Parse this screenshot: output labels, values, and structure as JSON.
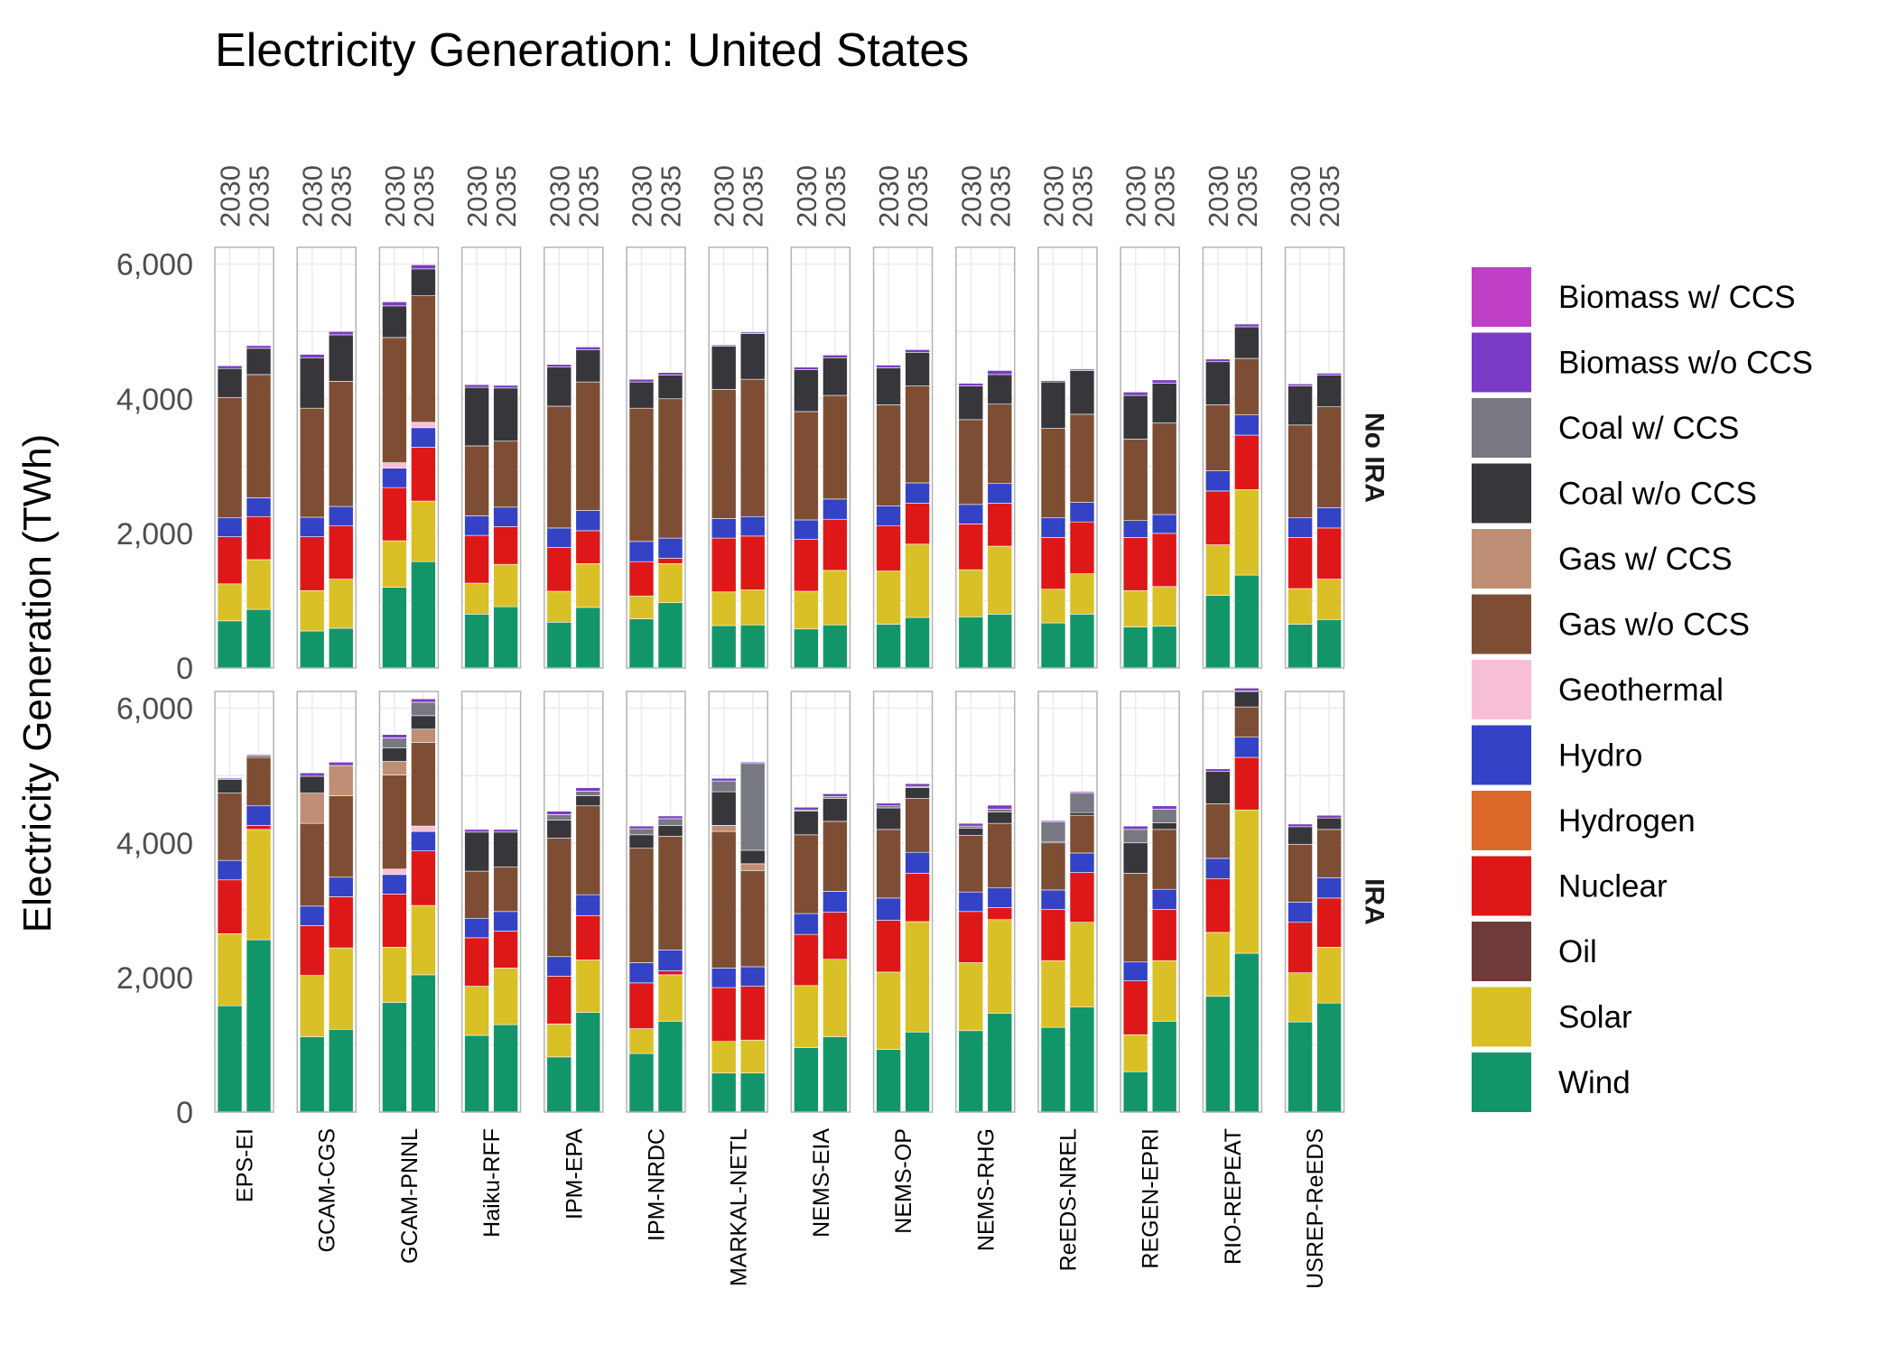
{
  "chart_data": {
    "type": "bar",
    "stacked": true,
    "faceted": true,
    "title": "Electricity Generation: United States",
    "ylabel": "Electricity Generation (TWh)",
    "xlabel": "",
    "ylim": [
      0,
      6250
    ],
    "yticks": [
      0,
      2000,
      4000,
      6000
    ],
    "ytick_labels": [
      "0",
      "2,000",
      "4,000",
      "6,000"
    ],
    "years": [
      "2030",
      "2035"
    ],
    "grid": true,
    "legend_position": "right",
    "scenarios": [
      "No IRA",
      "IRA"
    ],
    "models": [
      "EPS-EI",
      "GCAM-CGS",
      "GCAM-PNNL",
      "Haiku-RFF",
      "IPM-EPA",
      "IPM-NRDC",
      "MARKAL-NETL",
      "NEMS-EIA",
      "NEMS-OP",
      "NEMS-RHG",
      "ReEDS-NREL",
      "REGEN-EPRI",
      "RIO-REPEAT",
      "USREP-ReEDS"
    ],
    "series": [
      {
        "name": "Biomass w/ CCS",
        "color": "#BF3FC6"
      },
      {
        "name": "Biomass w/o CCS",
        "color": "#7B3BC5"
      },
      {
        "name": "Coal w/ CCS",
        "color": "#787883"
      },
      {
        "name": "Coal w/o CCS",
        "color": "#36363B"
      },
      {
        "name": "Gas w/ CCS",
        "color": "#BE8F74"
      },
      {
        "name": "Gas w/o CCS",
        "color": "#7E4E34"
      },
      {
        "name": "Geothermal",
        "color": "#F7BFD6"
      },
      {
        "name": "Hydro",
        "color": "#3442C6"
      },
      {
        "name": "Hydrogen",
        "color": "#DC6829"
      },
      {
        "name": "Nuclear",
        "color": "#DE1818"
      },
      {
        "name": "Oil",
        "color": "#6E3A3A"
      },
      {
        "name": "Solar",
        "color": "#D9C026"
      },
      {
        "name": "Wind",
        "color": "#13956A"
      }
    ],
    "stack_order": [
      "Wind",
      "Solar",
      "Oil",
      "Nuclear",
      "Hydrogen",
      "Hydro",
      "Geothermal",
      "Gas w/o CCS",
      "Gas w/ CCS",
      "Coal w/o CCS",
      "Coal w/ CCS",
      "Biomass w/o CCS",
      "Biomass w/ CCS"
    ],
    "values": {
      "No IRA": {
        "EPS-EI": {
          "2030": {
            "Wind": 700,
            "Solar": 550,
            "Nuclear": 700,
            "Hydro": 280,
            "Gas w/o CCS": 1790,
            "Coal w/o CCS": 430,
            "Biomass w/o CCS": 40
          },
          "2035": {
            "Wind": 870,
            "Solar": 740,
            "Nuclear": 640,
            "Hydro": 280,
            "Gas w/o CCS": 1830,
            "Coal w/o CCS": 390,
            "Biomass w/o CCS": 40
          }
        },
        "GCAM-CGS": {
          "2030": {
            "Wind": 550,
            "Solar": 600,
            "Nuclear": 800,
            "Hydro": 290,
            "Gas w/o CCS": 1620,
            "Coal w/o CCS": 750,
            "Biomass w/o CCS": 50
          },
          "2035": {
            "Wind": 590,
            "Solar": 730,
            "Nuclear": 790,
            "Hydro": 290,
            "Gas w/o CCS": 1860,
            "Coal w/o CCS": 690,
            "Biomass w/o CCS": 50
          }
        },
        "GCAM-PNNL": {
          "2030": {
            "Wind": 1200,
            "Solar": 690,
            "Nuclear": 790,
            "Hydro": 290,
            "Geothermal": 80,
            "Gas w/o CCS": 1860,
            "Coal w/o CCS": 470,
            "Biomass w/o CCS": 60
          },
          "2035": {
            "Wind": 1580,
            "Solar": 900,
            "Nuclear": 800,
            "Hydro": 290,
            "Geothermal": 80,
            "Gas w/o CCS": 1880,
            "Coal w/o CCS": 400,
            "Biomass w/o CCS": 60
          }
        },
        "Haiku-RFF": {
          "2030": {
            "Wind": 800,
            "Solar": 460,
            "Nuclear": 710,
            "Hydro": 290,
            "Gas w/o CCS": 1040,
            "Coal w/o CCS": 870,
            "Biomass w/o CCS": 40
          },
          "2035": {
            "Wind": 910,
            "Solar": 630,
            "Nuclear": 560,
            "Hydro": 290,
            "Gas w/o CCS": 980,
            "Coal w/o CCS": 790,
            "Biomass w/o CCS": 40
          }
        },
        "IPM-EPA": {
          "2030": {
            "Wind": 680,
            "Solar": 460,
            "Nuclear": 650,
            "Hydro": 290,
            "Gas w/o CCS": 1810,
            "Coal w/o CCS": 580,
            "Biomass w/o CCS": 40
          },
          "2035": {
            "Wind": 900,
            "Solar": 650,
            "Nuclear": 490,
            "Hydro": 300,
            "Gas w/o CCS": 1910,
            "Coal w/o CCS": 480,
            "Biomass w/o CCS": 40
          }
        },
        "IPM-NRDC": {
          "2030": {
            "Wind": 730,
            "Solar": 340,
            "Nuclear": 510,
            "Hydro": 300,
            "Gas w/o CCS": 1980,
            "Coal w/o CCS": 390,
            "Biomass w/o CCS": 40
          },
          "2035": {
            "Wind": 970,
            "Solar": 580,
            "Nuclear": 80,
            "Hydro": 300,
            "Gas w/o CCS": 2070,
            "Coal w/o CCS": 350,
            "Biomass w/o CCS": 40
          }
        },
        "MARKAL-NETL": {
          "2030": {
            "Wind": 630,
            "Solar": 500,
            "Nuclear": 800,
            "Hydro": 290,
            "Gas w/o CCS": 1920,
            "Coal w/o CCS": 640,
            "Biomass w/o CCS": 20
          },
          "2035": {
            "Wind": 640,
            "Solar": 520,
            "Nuclear": 800,
            "Hydro": 290,
            "Gas w/o CCS": 2040,
            "Coal w/o CCS": 680,
            "Biomass w/o CCS": 20
          }
        },
        "NEMS-EIA": {
          "2030": {
            "Wind": 580,
            "Solar": 560,
            "Nuclear": 770,
            "Hydro": 290,
            "Gas w/o CCS": 1610,
            "Coal w/o CCS": 620,
            "Biomass w/o CCS": 40
          },
          "2035": {
            "Wind": 640,
            "Solar": 810,
            "Nuclear": 760,
            "Hydro": 300,
            "Gas w/o CCS": 1540,
            "Coal w/o CCS": 560,
            "Biomass w/o CCS": 40
          }
        },
        "NEMS-OP": {
          "2030": {
            "Wind": 650,
            "Solar": 790,
            "Nuclear": 670,
            "Hydro": 300,
            "Gas w/o CCS": 1500,
            "Coal w/o CCS": 550,
            "Biomass w/o CCS": 40
          },
          "2035": {
            "Wind": 750,
            "Solar": 1090,
            "Nuclear": 610,
            "Hydro": 300,
            "Gas w/o CCS": 1440,
            "Coal w/o CCS": 500,
            "Biomass w/o CCS": 40
          }
        },
        "NEMS-RHG": {
          "2030": {
            "Wind": 760,
            "Solar": 700,
            "Nuclear": 680,
            "Hydro": 290,
            "Gas w/o CCS": 1260,
            "Coal w/o CCS": 500,
            "Biomass w/o CCS": 40
          },
          "2035": {
            "Wind": 800,
            "Solar": 1010,
            "Nuclear": 640,
            "Hydro": 290,
            "Gas w/o CCS": 1180,
            "Coal w/o CCS": 440,
            "Biomass w/o CCS": 60
          }
        },
        "ReEDS-NREL": {
          "2030": {
            "Wind": 670,
            "Solar": 500,
            "Nuclear": 770,
            "Hydro": 290,
            "Gas w/o CCS": 1330,
            "Coal w/o CCS": 690,
            "Biomass w/o CCS": 20
          },
          "2035": {
            "Wind": 800,
            "Solar": 600,
            "Nuclear": 770,
            "Hydro": 290,
            "Gas w/o CCS": 1310,
            "Coal w/o CCS": 650,
            "Biomass w/o CCS": 20
          }
        },
        "REGEN-EPRI": {
          "2030": {
            "Wind": 610,
            "Solar": 540,
            "Nuclear": 790,
            "Hydro": 250,
            "Gas w/o CCS": 1210,
            "Coal w/o CCS": 650,
            "Biomass w/o CCS": 50
          },
          "2035": {
            "Wind": 620,
            "Solar": 590,
            "Nuclear": 790,
            "Hydro": 280,
            "Gas w/o CCS": 1360,
            "Coal w/o CCS": 590,
            "Biomass w/o CCS": 50
          }
        },
        "RIO-REPEAT": {
          "2030": {
            "Wind": 1080,
            "Solar": 750,
            "Nuclear": 800,
            "Hydro": 300,
            "Gas w/o CCS": 980,
            "Coal w/o CCS": 640,
            "Biomass w/o CCS": 40
          },
          "2035": {
            "Wind": 1380,
            "Solar": 1270,
            "Nuclear": 810,
            "Hydro": 300,
            "Gas w/o CCS": 840,
            "Coal w/o CCS": 470,
            "Biomass w/o CCS": 40
          }
        },
        "USREP-ReEDS": {
          "2030": {
            "Wind": 650,
            "Solar": 530,
            "Nuclear": 760,
            "Hydro": 290,
            "Gas w/o CCS": 1380,
            "Coal w/o CCS": 580,
            "Biomass w/o CCS": 30
          },
          "2035": {
            "Wind": 720,
            "Solar": 600,
            "Nuclear": 760,
            "Hydro": 300,
            "Gas w/o CCS": 1500,
            "Coal w/o CCS": 470,
            "Biomass w/o CCS": 30
          }
        }
      },
      "IRA": {
        "EPS-EI": {
          "2030": {
            "Wind": 1580,
            "Solar": 1070,
            "Nuclear": 800,
            "Hydro": 290,
            "Gas w/o CCS": 1000,
            "Coal w/o CCS": 200,
            "Biomass w/o CCS": 20
          },
          "2035": {
            "Wind": 2560,
            "Solar": 1640,
            "Nuclear": 60,
            "Hydro": 290,
            "Gas w/o CCS": 720,
            "Coal w/o CCS": 20,
            "Biomass w/o CCS": 20
          }
        },
        "GCAM-CGS": {
          "2030": {
            "Wind": 1120,
            "Solar": 910,
            "Nuclear": 740,
            "Hydro": 290,
            "Gas w/o CCS": 1230,
            "Gas w/ CCS": 450,
            "Coal w/o CCS": 250,
            "Biomass w/o CCS": 50
          },
          "2035": {
            "Wind": 1230,
            "Solar": 1210,
            "Nuclear": 760,
            "Hydro": 290,
            "Gas w/o CCS": 1210,
            "Gas w/ CCS": 450,
            "Biomass w/o CCS": 50
          }
        },
        "GCAM-PNNL": {
          "2030": {
            "Wind": 1630,
            "Solar": 820,
            "Nuclear": 790,
            "Hydro": 290,
            "Geothermal": 80,
            "Gas w/o CCS": 1400,
            "Gas w/ CCS": 200,
            "Coal w/o CCS": 200,
            "Coal w/ CCS": 150,
            "Biomass w/o CCS": 50
          },
          "2035": {
            "Wind": 2040,
            "Solar": 1030,
            "Nuclear": 810,
            "Hydro": 290,
            "Geothermal": 80,
            "Gas w/o CCS": 1240,
            "Gas w/ CCS": 200,
            "Coal w/o CCS": 200,
            "Coal w/ CCS": 200,
            "Biomass w/o CCS": 50
          }
        },
        "Haiku-RFF": {
          "2030": {
            "Wind": 1140,
            "Solar": 730,
            "Nuclear": 720,
            "Hydro": 290,
            "Gas w/o CCS": 700,
            "Coal w/o CCS": 580,
            "Biomass w/o CCS": 40
          },
          "2035": {
            "Wind": 1300,
            "Solar": 840,
            "Nuclear": 550,
            "Hydro": 290,
            "Gas w/o CCS": 660,
            "Coal w/o CCS": 520,
            "Biomass w/o CCS": 40
          }
        },
        "IPM-EPA": {
          "2030": {
            "Wind": 820,
            "Solar": 490,
            "Nuclear": 710,
            "Hydro": 290,
            "Gas w/o CCS": 1760,
            "Coal w/o CCS": 270,
            "Coal w/ CCS": 80,
            "Biomass w/o CCS": 50
          },
          "2035": {
            "Wind": 1480,
            "Solar": 780,
            "Nuclear": 660,
            "Hydro": 310,
            "Gas w/o CCS": 1320,
            "Coal w/o CCS": 150,
            "Coal w/ CCS": 70,
            "Biomass w/o CCS": 50
          }
        },
        "IPM-NRDC": {
          "2030": {
            "Wind": 870,
            "Solar": 370,
            "Nuclear": 680,
            "Hydro": 300,
            "Gas w/o CCS": 1700,
            "Coal w/o CCS": 200,
            "Coal w/ CCS": 90,
            "Biomass w/o CCS": 40
          },
          "2035": {
            "Wind": 1350,
            "Solar": 690,
            "Nuclear": 60,
            "Hydro": 310,
            "Gas w/o CCS": 1690,
            "Coal w/o CCS": 160,
            "Coal w/ CCS": 100,
            "Biomass w/o CCS": 40
          }
        },
        "MARKAL-NETL": {
          "2030": {
            "Wind": 580,
            "Solar": 470,
            "Nuclear": 800,
            "Hydro": 290,
            "Gas w/o CCS": 2030,
            "Gas w/ CCS": 90,
            "Coal w/o CCS": 500,
            "Coal w/ CCS": 160,
            "Biomass w/o CCS": 40
          },
          "2035": {
            "Wind": 580,
            "Solar": 490,
            "Nuclear": 800,
            "Hydro": 290,
            "Gas w/o CCS": 1430,
            "Gas w/ CCS": 100,
            "Coal w/o CCS": 200,
            "Coal w/ CCS": 1290,
            "Biomass w/o CCS": 20
          }
        },
        "NEMS-EIA": {
          "2030": {
            "Wind": 960,
            "Solar": 920,
            "Nuclear": 760,
            "Hydro": 310,
            "Gas w/o CCS": 1170,
            "Coal w/o CCS": 350,
            "Coal w/ CCS": 20,
            "Biomass w/o CCS": 40
          },
          "2035": {
            "Wind": 1120,
            "Solar": 1150,
            "Nuclear": 700,
            "Hydro": 310,
            "Gas w/o CCS": 1040,
            "Coal w/o CCS": 340,
            "Coal w/ CCS": 30,
            "Biomass w/o CCS": 40
          }
        },
        "NEMS-OP": {
          "2030": {
            "Wind": 930,
            "Solar": 1150,
            "Nuclear": 770,
            "Hydro": 330,
            "Gas w/o CCS": 1020,
            "Coal w/o CCS": 320,
            "Coal w/ CCS": 30,
            "Biomass w/o CCS": 40
          },
          "2035": {
            "Wind": 1190,
            "Solar": 1640,
            "Nuclear": 720,
            "Hydro": 310,
            "Gas w/o CCS": 800,
            "Coal w/o CCS": 160,
            "Coal w/ CCS": 20,
            "Biomass w/o CCS": 40
          }
        },
        "NEMS-RHG": {
          "2030": {
            "Wind": 1210,
            "Solar": 1010,
            "Nuclear": 760,
            "Hydro": 290,
            "Gas w/o CCS": 840,
            "Coal w/o CCS": 110,
            "Coal w/ CCS": 30,
            "Biomass w/o CCS": 40
          },
          "2035": {
            "Wind": 1470,
            "Solar": 1390,
            "Nuclear": 180,
            "Hydro": 290,
            "Gas w/o CCS": 960,
            "Coal w/o CCS": 170,
            "Coal w/ CCS": 40,
            "Biomass w/o CCS": 60
          }
        },
        "ReEDS-NREL": {
          "2030": {
            "Wind": 1260,
            "Solar": 990,
            "Nuclear": 760,
            "Hydro": 290,
            "Gas w/o CCS": 700,
            "Coal w/o CCS": 20,
            "Coal w/ CCS": 290,
            "Biomass w/o CCS": 20
          },
          "2035": {
            "Wind": 1560,
            "Solar": 1260,
            "Nuclear": 740,
            "Hydro": 290,
            "Gas w/o CCS": 560,
            "Coal w/o CCS": 40,
            "Coal w/ CCS": 290,
            "Biomass w/o CCS": 20
          }
        },
        "REGEN-EPRI": {
          "2030": {
            "Wind": 600,
            "Solar": 550,
            "Nuclear": 800,
            "Hydro": 280,
            "Gas w/o CCS": 1320,
            "Coal w/o CCS": 450,
            "Coal w/ CCS": 200,
            "Biomass w/o CCS": 50
          },
          "2035": {
            "Wind": 1350,
            "Solar": 900,
            "Nuclear": 760,
            "Hydro": 300,
            "Gas w/o CCS": 890,
            "Coal w/o CCS": 100,
            "Coal w/ CCS": 200,
            "Biomass w/o CCS": 50
          }
        },
        "RIO-REPEAT": {
          "2030": {
            "Wind": 1720,
            "Solar": 950,
            "Nuclear": 800,
            "Hydro": 300,
            "Gas w/o CCS": 810,
            "Coal w/o CCS": 480,
            "Biomass w/o CCS": 40
          },
          "2035": {
            "Wind": 2360,
            "Solar": 2130,
            "Nuclear": 780,
            "Hydro": 300,
            "Gas w/o CCS": 450,
            "Coal w/o CCS": 240,
            "Biomass w/o CCS": 40
          }
        },
        "USREP-ReEDS": {
          "2030": {
            "Wind": 1340,
            "Solar": 730,
            "Nuclear": 750,
            "Hydro": 300,
            "Gas w/o CCS": 860,
            "Coal w/o CCS": 260,
            "Biomass w/o CCS": 40
          },
          "2035": {
            "Wind": 1620,
            "Solar": 830,
            "Nuclear": 730,
            "Hydro": 300,
            "Gas w/o CCS": 720,
            "Coal w/o CCS": 170,
            "Biomass w/o CCS": 40
          }
        }
      }
    }
  }
}
